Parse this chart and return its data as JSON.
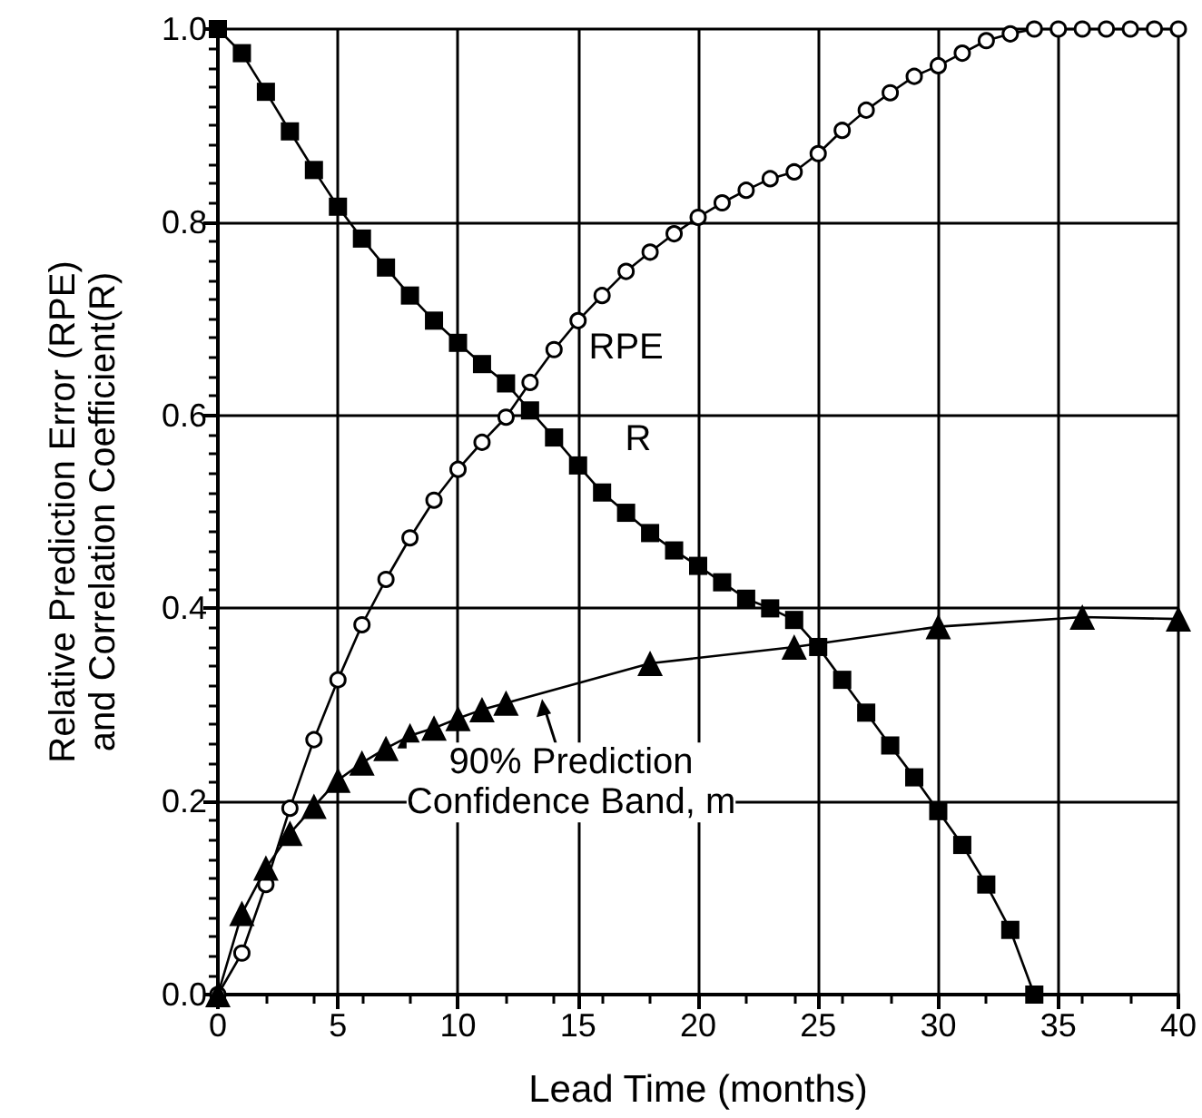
{
  "chart_data": {
    "type": "line",
    "xlabel": "Lead Time (months)",
    "ylabel": "Relative Prediction Error (RPE)\nand Correlation Coefficient(R)",
    "xlim": [
      0,
      40
    ],
    "xticks": [
      0,
      5,
      10,
      15,
      20,
      25,
      30,
      35,
      40
    ],
    "ylim": [
      0,
      1
    ],
    "yticks": [
      {
        "value": 0,
        "label": "0.0"
      },
      {
        "value": 0.2,
        "label": "0.2"
      },
      {
        "value": 0.4,
        "label": "0.4"
      },
      {
        "value": 0.6,
        "label": "0.6"
      },
      {
        "value": 0.8,
        "label": "0.8"
      },
      {
        "value": 1,
        "label": "1.0"
      }
    ],
    "grid": true,
    "series": [
      {
        "color": "#000000",
        "marker": "circle",
        "x": [
          0,
          1,
          2,
          3,
          4,
          5,
          6,
          7,
          8,
          9,
          10,
          11,
          12,
          13,
          14,
          15,
          16,
          17,
          18,
          19,
          20,
          21,
          22,
          23,
          24,
          25,
          26,
          27,
          28,
          29,
          30,
          31,
          32,
          33,
          34,
          35,
          36,
          37,
          38,
          39,
          40
        ],
        "values": [
          0,
          0.043,
          0.114,
          0.193,
          0.264,
          0.326,
          0.383,
          0.43,
          0.473,
          0.512,
          0.544,
          0.572,
          0.598,
          0.634,
          0.668,
          0.698,
          0.724,
          0.749,
          0.769,
          0.788,
          0.805,
          0.82,
          0.833,
          0.845,
          0.852,
          0.871,
          0.895,
          0.916,
          0.934,
          0.951,
          0.962,
          0.975,
          0.988,
          0.995,
          1,
          1,
          1,
          1,
          1,
          1,
          1
        ]
      },
      {
        "color": "#000000",
        "marker": "square",
        "x": [
          0,
          1,
          2,
          3,
          4,
          5,
          6,
          7,
          8,
          9,
          10,
          11,
          12,
          13,
          14,
          15,
          16,
          17,
          18,
          19,
          20,
          21,
          22,
          23,
          24,
          25,
          26,
          27,
          28,
          29,
          30,
          31,
          32,
          33,
          34
        ],
        "values": [
          1,
          0.975,
          0.935,
          0.894,
          0.854,
          0.816,
          0.783,
          0.753,
          0.724,
          0.698,
          0.675,
          0.653,
          0.633,
          0.605,
          0.577,
          0.548,
          0.52,
          0.499,
          0.478,
          0.46,
          0.444,
          0.427,
          0.41,
          0.4,
          0.388,
          0.36,
          0.326,
          0.292,
          0.258,
          0.225,
          0.19,
          0.155,
          0.114,
          0.067,
          0
        ]
      },
      {
        "color": "#000000",
        "marker": "triangle",
        "x": [
          0,
          1,
          2,
          3,
          4,
          5,
          6,
          7,
          8,
          9,
          10,
          11,
          12,
          18,
          24,
          30,
          36,
          40
        ],
        "values": [
          0,
          0.084,
          0.131,
          0.167,
          0.195,
          0.222,
          0.24,
          0.255,
          0.268,
          0.276,
          0.286,
          0.295,
          0.302,
          0.343,
          0.36,
          0.381,
          0.391,
          0.389
        ]
      }
    ],
    "annotations": [
      {
        "text": "RPE",
        "x": 17,
        "y": 0.67
      },
      {
        "text": "R",
        "x": 17.5,
        "y": 0.575
      },
      {
        "text": "90% Prediction\nConfidence Band, m",
        "x": 13.5,
        "y": 0.31
      }
    ]
  }
}
